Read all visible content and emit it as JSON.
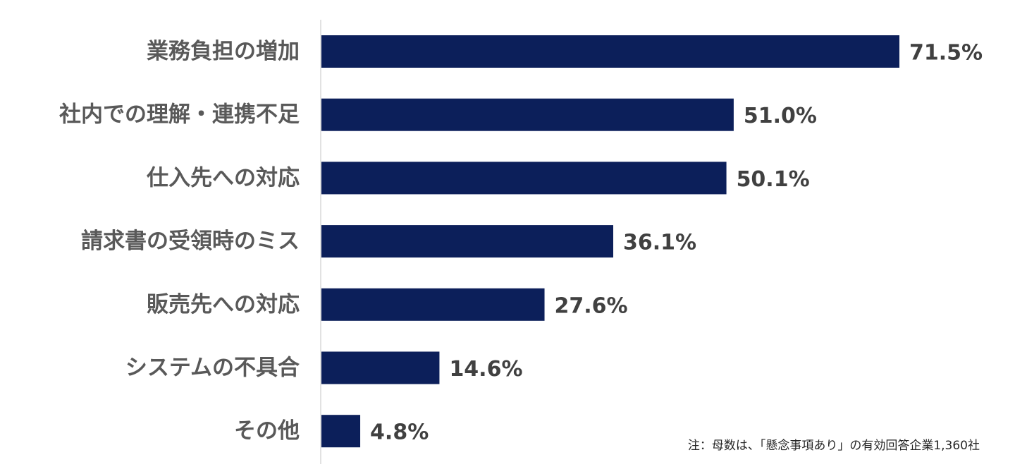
{
  "chart_data": {
    "type": "bar",
    "orientation": "horizontal",
    "title": "",
    "xlabel": "",
    "ylabel": "",
    "categories": [
      "業務負担の増加",
      "社内での理解・連携不足",
      "仕入先への対応",
      "請求書の受領時のミス",
      "販売先への対応",
      "システムの不具合",
      "その他"
    ],
    "values": [
      71.5,
      51.0,
      50.1,
      36.1,
      27.6,
      14.6,
      4.8
    ],
    "value_labels": [
      "71.5%",
      "51.0%",
      "50.1%",
      "36.1%",
      "27.6%",
      "14.6%",
      "4.8%"
    ],
    "xlim": [
      0,
      80
    ],
    "grid": false,
    "legend": "none",
    "bar_color": "#0c1f5a"
  },
  "note": "注：母数は、「懸念事項あり」の有効回答企業1,360社"
}
